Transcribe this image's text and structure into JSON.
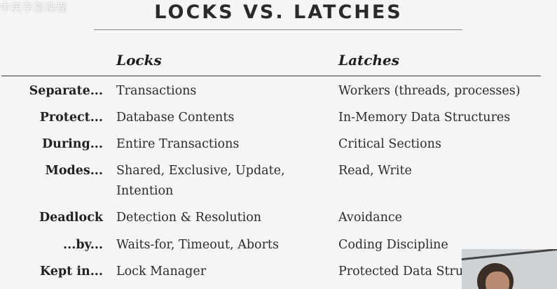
{
  "watermark": "中英字幕课程",
  "title": "LOCKS VS. LATCHES",
  "columns": {
    "locks": "Locks",
    "latches": "Latches"
  },
  "rows": [
    {
      "label": "Separate...",
      "locks": "Transactions",
      "latches": "Workers (threads, processes)"
    },
    {
      "label": "Protect...",
      "locks": "Database Contents",
      "latches": "In-Memory Data Structures"
    },
    {
      "label": "During...",
      "locks": "Entire Transactions",
      "latches": "Critical Sections"
    },
    {
      "label": "Modes...",
      "locks": "Shared, Exclusive, Update, Intention",
      "latches": "Read, Write"
    },
    {
      "label": "Deadlock",
      "locks": "Detection & Resolution",
      "latches": "Avoidance"
    },
    {
      "label": "...by...",
      "locks": "Waits-for, Timeout, Aborts",
      "latches": "Coding Discipline"
    },
    {
      "label": "Kept in...",
      "locks": "Lock Manager",
      "latches": "Protected Data Structure"
    }
  ]
}
